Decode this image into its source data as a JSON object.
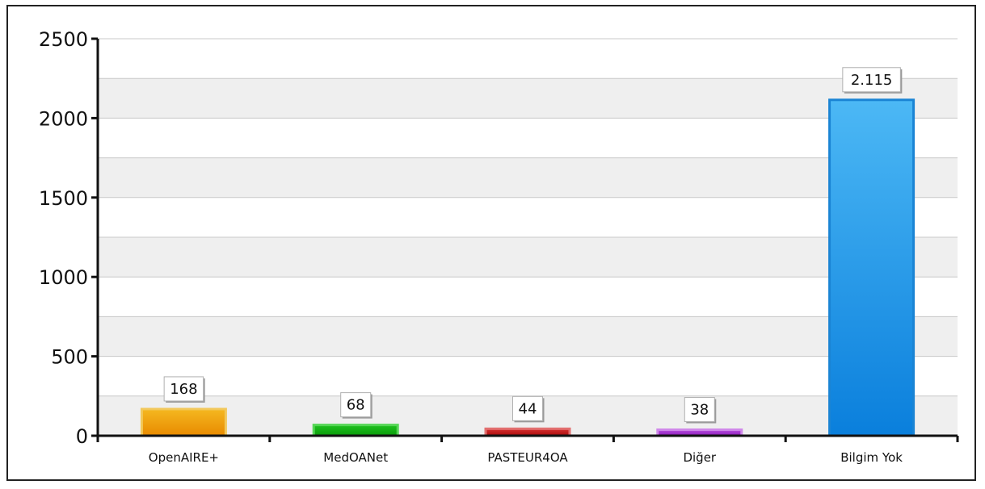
{
  "chart_data": {
    "type": "bar",
    "title": "",
    "xlabel": "",
    "ylabel": "",
    "categories": [
      "OpenAIRE+",
      "MedOANet",
      "PASTEUR4OA",
      "Diğer",
      "Bilgim Yok"
    ],
    "values": [
      168,
      68,
      44,
      38,
      2115
    ],
    "data_labels": [
      "168",
      "68",
      "44",
      "38",
      "2.115"
    ],
    "ylim": [
      0,
      2500
    ],
    "yticks": [
      0,
      500,
      1000,
      1500,
      2000,
      2500
    ],
    "ytick_labels": [
      "0",
      "500",
      "1000",
      "1500",
      "2000",
      "2500"
    ],
    "grid": true,
    "minor_grid_step": 250,
    "legend": "none",
    "colors": {
      "OpenAIRE+": {
        "top": "#f5b820",
        "bottom": "#e88a00",
        "edge": "#f2c85a"
      },
      "MedOANet": {
        "top": "#1fc21f",
        "bottom": "#0a9a0a",
        "edge": "#55d655"
      },
      "PASTEUR4OA": {
        "top": "#d83030",
        "bottom": "#a80c0c",
        "edge": "#e27070"
      },
      "Diğer": {
        "top": "#b84ee0",
        "bottom": "#8a1cb8",
        "edge": "#cf88ea"
      },
      "Bilgim Yok": {
        "top": "#4cb8f5",
        "bottom": "#0a7fdc",
        "edge": "#1a84d4"
      },
      "plot_band": "#efefef",
      "grid": "#c8c8c8",
      "axis": "#111111"
    }
  }
}
